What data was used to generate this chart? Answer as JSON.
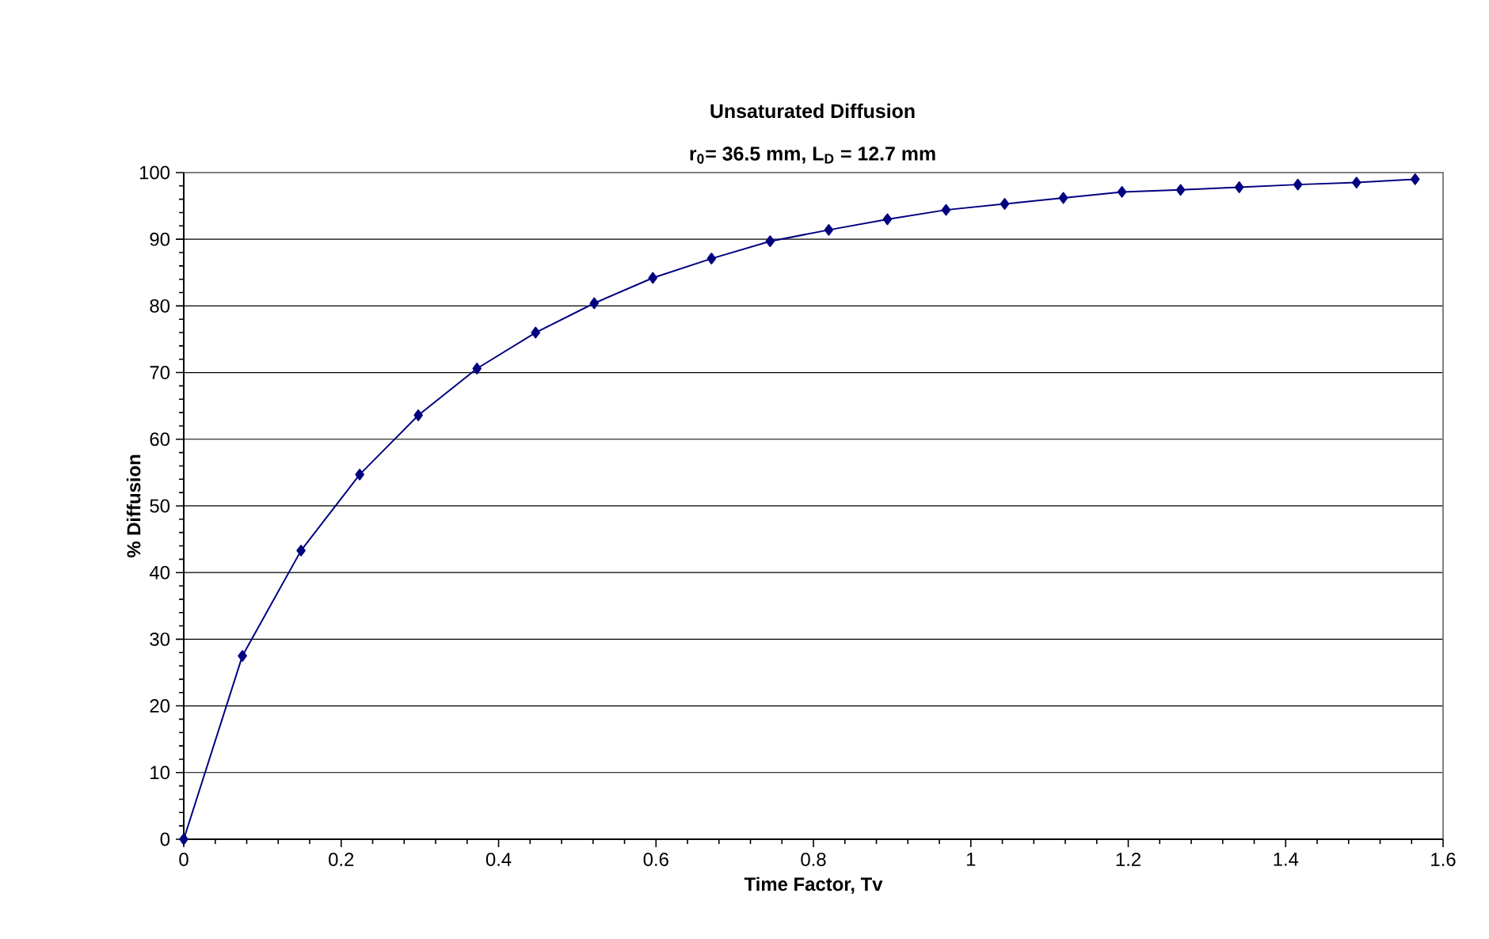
{
  "chart_data": {
    "type": "line",
    "title": "Unsaturated Diffusion",
    "subtitle": "r$_{0}$= 36.5 mm, L$_{D}$ = 12.7 mm",
    "xlabel": "Time Factor, Tv",
    "ylabel": "% Diffusion",
    "series": [
      {
        "color": "#000080",
        "x": [
          0,
          0.0745,
          0.149,
          0.2235,
          0.298,
          0.3725,
          0.447,
          0.5215,
          0.596,
          0.6705,
          0.745,
          0.8195,
          0.894,
          0.9685,
          1.043,
          1.1175,
          1.192,
          1.2665,
          1.341,
          1.4155,
          1.49,
          1.5645
        ],
        "values": [
          0,
          27.5,
          43.3,
          54.7,
          63.6,
          70.6,
          76.0,
          80.4,
          84.2,
          87.1,
          89.7,
          91.4,
          93.0,
          94.4,
          95.3,
          96.2,
          97.1,
          97.4,
          97.8,
          98.2,
          98.5,
          99.0
        ]
      }
    ],
    "xlim": [
      0,
      1.6
    ],
    "ylim": [
      0,
      100
    ],
    "xticks": [
      0,
      0.2,
      0.4,
      0.6,
      0.8,
      1,
      1.2,
      1.4,
      1.6
    ],
    "yticks": [
      0,
      10,
      20,
      30,
      40,
      50,
      60,
      70,
      80,
      90,
      100
    ],
    "grid": "y",
    "marker": "diamond",
    "line_style": "solid"
  }
}
